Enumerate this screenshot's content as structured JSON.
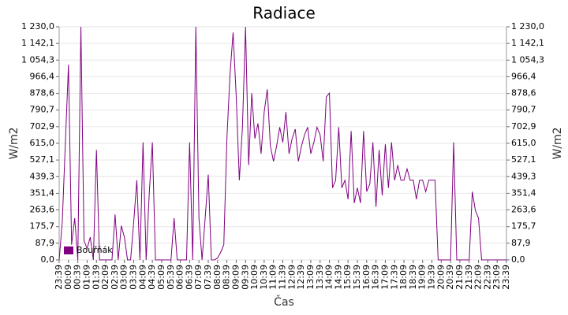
{
  "chart_data": {
    "type": "line",
    "title": "Radiace",
    "xlabel": "Čas",
    "ylabel": "W/m2",
    "categories": [
      "23:39",
      null,
      null,
      "00:09",
      null,
      null,
      "00:39",
      null,
      null,
      "01:09",
      null,
      null,
      "01:39",
      null,
      null,
      "02:09",
      null,
      null,
      "02:39",
      null,
      null,
      "03:09",
      null,
      null,
      "03:39",
      null,
      null,
      "04:09",
      null,
      null,
      "04:39",
      null,
      null,
      "05:09",
      null,
      null,
      "05:39",
      null,
      null,
      "06:09",
      null,
      null,
      "06:39",
      null,
      null,
      "07:09",
      null,
      null,
      "07:39",
      null,
      null,
      "08:09",
      null,
      null,
      "08:39",
      null,
      null,
      "09:09",
      null,
      null,
      "09:39",
      null,
      null,
      "10:09",
      null,
      null,
      "10:39",
      null,
      null,
      "11:09",
      null,
      null,
      "11:39",
      null,
      null,
      "12:09",
      null,
      null,
      "12:39",
      null,
      null,
      "13:09",
      null,
      null,
      "13:39",
      null,
      null,
      "14:09",
      null,
      null,
      "14:39",
      null,
      null,
      "15:09",
      null,
      null,
      "15:39",
      null,
      null,
      "16:09",
      null,
      null,
      "16:39",
      null,
      null,
      "17:09",
      null,
      null,
      "17:39",
      null,
      null,
      "18:09",
      null,
      null,
      "18:39",
      null,
      null,
      "19:09",
      null,
      null,
      "19:39",
      null,
      null,
      "20:09",
      null,
      null,
      "20:39",
      null,
      null,
      "21:09",
      null,
      null,
      "21:39",
      null,
      null,
      "22:09",
      null,
      null,
      "22:39",
      null,
      null,
      "23:09",
      null,
      null,
      "23:39"
    ],
    "series": [
      {
        "name": "Bouřňák",
        "color": "#800080",
        "values": [
          0,
          200,
          620,
          1030,
          80,
          220,
          0,
          1230,
          100,
          60,
          120,
          0,
          580,
          0,
          0,
          0,
          0,
          0,
          240,
          0,
          180,
          120,
          0,
          0,
          200,
          420,
          0,
          620,
          0,
          350,
          620,
          0,
          0,
          0,
          0,
          0,
          0,
          220,
          0,
          0,
          0,
          0,
          620,
          0,
          1230,
          220,
          0,
          220,
          450,
          0,
          0,
          10,
          40,
          80,
          640,
          980,
          1200,
          860,
          420,
          700,
          1230,
          500,
          880,
          640,
          720,
          560,
          780,
          900,
          600,
          520,
          600,
          700,
          620,
          780,
          560,
          640,
          690,
          520,
          600,
          660,
          700,
          560,
          620,
          700,
          660,
          520,
          860,
          880,
          380,
          420,
          700,
          380,
          420,
          320,
          680,
          300,
          380,
          300,
          680,
          360,
          400,
          620,
          280,
          580,
          340,
          610,
          380,
          620,
          420,
          500,
          420,
          420,
          480,
          420,
          420,
          320,
          420,
          420,
          360,
          420,
          420,
          420,
          0,
          0,
          0,
          0,
          0,
          620,
          0,
          0,
          0,
          0,
          0,
          360,
          260,
          220,
          0,
          0,
          0,
          0,
          0,
          0,
          0,
          0,
          0
        ]
      }
    ],
    "ylim": [
      0,
      1230
    ],
    "yticks": [
      {
        "value": 0,
        "label": "0,0"
      },
      {
        "value": 87.9,
        "label": "87,9"
      },
      {
        "value": 175.7,
        "label": "175,7"
      },
      {
        "value": 263.6,
        "label": "263,6"
      },
      {
        "value": 351.4,
        "label": "351,4"
      },
      {
        "value": 439.3,
        "label": "439,3"
      },
      {
        "value": 527.1,
        "label": "527,1"
      },
      {
        "value": 615,
        "label": "615,0"
      },
      {
        "value": 702.9,
        "label": "702,9"
      },
      {
        "value": 790.7,
        "label": "790,7"
      },
      {
        "value": 878.6,
        "label": "878,6"
      },
      {
        "value": 966.4,
        "label": "966,4"
      },
      {
        "value": 1054.3,
        "label": "1 054,3"
      },
      {
        "value": 1142.1,
        "label": "1 142,1"
      },
      {
        "value": 1230,
        "label": "1 230,0"
      }
    ],
    "grid": true,
    "legend": "lower left"
  }
}
